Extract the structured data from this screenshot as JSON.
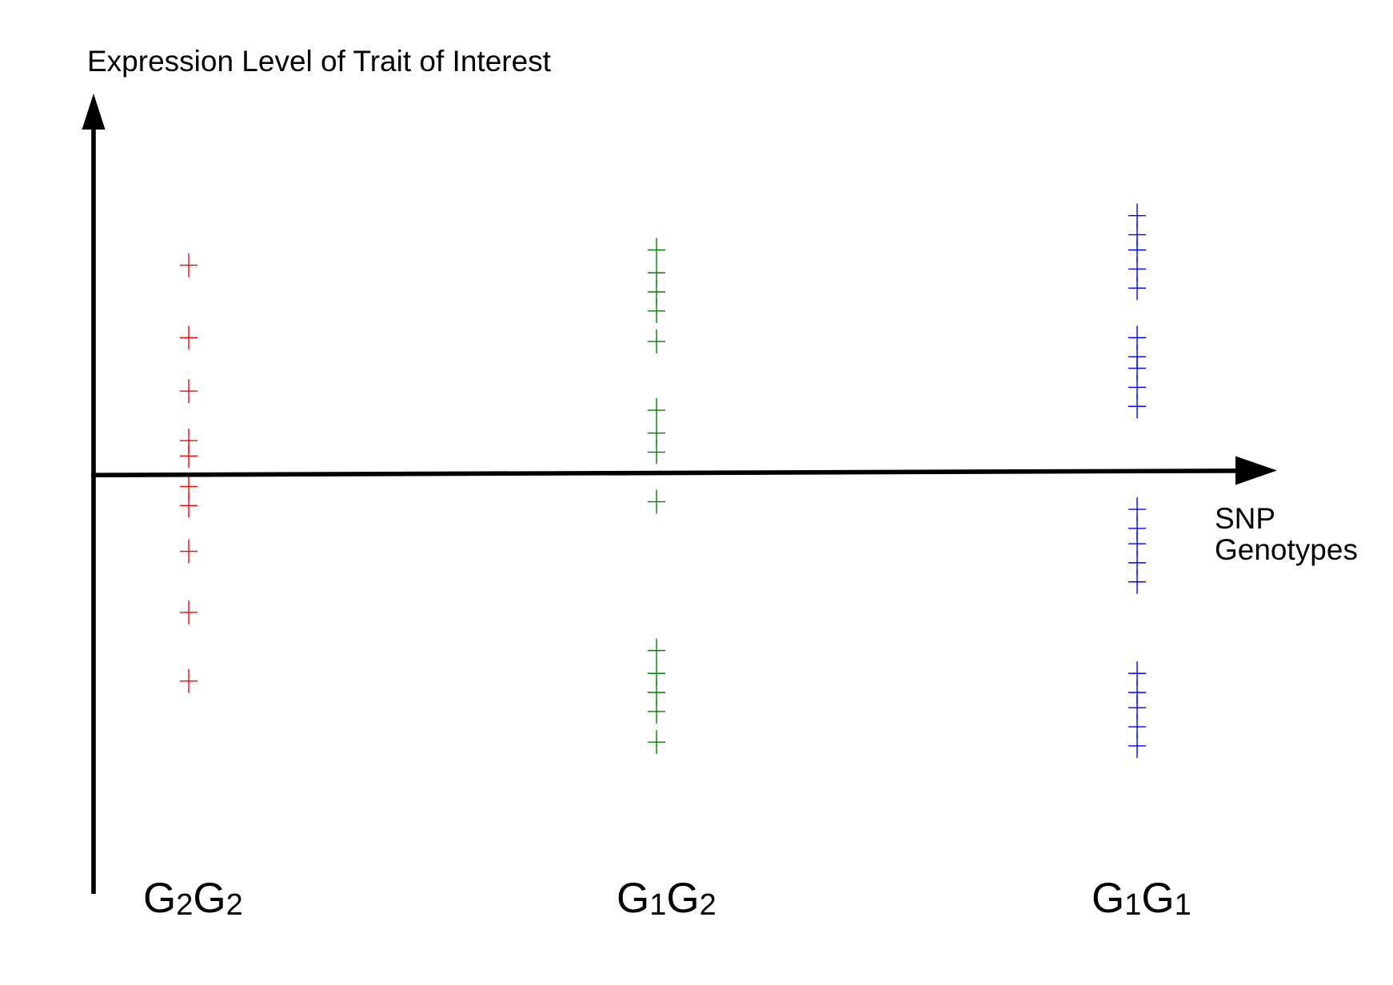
{
  "chart_data": {
    "type": "scatter",
    "ylabel": "Expression Level of Trait of Interest",
    "xlabel": "SNP Genotypes",
    "categories": [
      "G₂G₂",
      "G₁G₂",
      "G₁G₁"
    ],
    "ylim": [
      -11,
      10
    ],
    "grid": false,
    "legend": "none",
    "marker": "+",
    "axis_color": "#000000",
    "series": [
      {
        "x": "G₂G₂",
        "color": "#ff0000",
        "y": [
          5.5,
          3.6,
          2.2,
          0.9,
          0.5,
          -0.3,
          -0.8,
          -2.0,
          -3.6,
          -5.4
        ]
      },
      {
        "x": "G₁G₂",
        "color": "#008000",
        "y": [
          5.9,
          5.3,
          4.8,
          4.3,
          3.5,
          1.7,
          1.1,
          0.6,
          -0.7,
          -4.6,
          -5.2,
          -5.7,
          -6.2,
          -7.0
        ]
      },
      {
        "x": "G₁G₁",
        "color": "#0000ff",
        "y": [
          6.8,
          6.3,
          5.9,
          5.4,
          4.9,
          3.6,
          3.1,
          2.8,
          2.3,
          1.8,
          -0.9,
          -1.4,
          -1.8,
          -2.3,
          -2.8,
          -5.2,
          -5.7,
          -6.1,
          -6.6,
          -7.1
        ]
      }
    ]
  }
}
